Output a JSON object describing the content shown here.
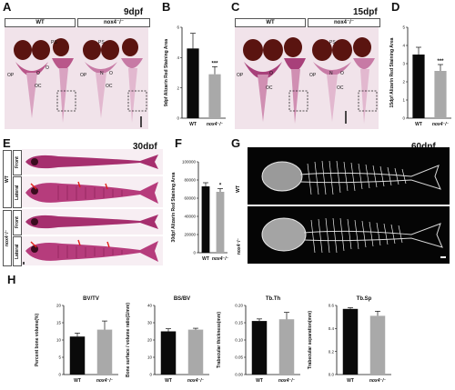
{
  "panels": {
    "A": {
      "letter": "A",
      "stage": "9dpf",
      "genotype_left": "WT",
      "genotype_right": "nox4⁻/⁻",
      "labels": [
        "OP",
        "O",
        "O",
        "OC",
        "PS",
        "N",
        "PS",
        "OP",
        "O",
        "OC"
      ]
    },
    "B": {
      "letter": "B"
    },
    "C": {
      "letter": "C",
      "stage": "15dpf",
      "genotype_left": "WT",
      "genotype_right": "nox4⁻/⁻",
      "labels": [
        "OP",
        "O",
        "OC",
        "PS",
        "N",
        "O",
        "OP",
        "OC"
      ]
    },
    "D": {
      "letter": "D"
    },
    "E": {
      "letter": "E",
      "stage": "30dpf",
      "wt": "WT",
      "mut": "nox4⁻/⁻",
      "view_front": "Front",
      "view_lateral": "Lateral"
    },
    "F": {
      "letter": "F"
    },
    "G": {
      "letter": "G",
      "stage": "60dpf",
      "wt": "WT",
      "mut": "nox4⁻/⁻"
    },
    "H": {
      "letter": "H"
    }
  },
  "colors": {
    "wt_bar": "#0a0a0a",
    "mut_bar": "#a9a9a9",
    "stain": "#8b1a5a",
    "stain_light": "#c77aa5",
    "eye": "#5a1410"
  },
  "chart_data": [
    {
      "id": "B",
      "type": "bar",
      "categories": [
        "WT",
        "nox4⁻/⁻"
      ],
      "values": [
        4.6,
        2.9
      ],
      "errors": [
        1.0,
        0.5
      ],
      "ylabel": "9dpf Alizarin Red Staining Area",
      "ylim": [
        0,
        6
      ],
      "yticks": [
        0,
        2,
        4,
        6
      ],
      "significance": "***"
    },
    {
      "id": "D",
      "type": "bar",
      "categories": [
        "WT",
        "nox4⁻/⁻"
      ],
      "values": [
        3.5,
        2.6
      ],
      "errors": [
        0.4,
        0.35
      ],
      "ylabel": "15dpf Alizarin Red Staining Area",
      "ylim": [
        0,
        5
      ],
      "yticks": [
        0,
        1,
        2,
        3,
        4,
        5
      ],
      "significance": "***"
    },
    {
      "id": "F",
      "type": "bar",
      "categories": [
        "WT",
        "nox4⁻/⁻"
      ],
      "values": [
        73000,
        67000
      ],
      "errors": [
        4000,
        3500
      ],
      "ylabel": "30dpf Alizarin Red Staining Area",
      "ylim": [
        0,
        100000
      ],
      "yticks": [
        0,
        20000,
        40000,
        60000,
        80000,
        100000
      ],
      "significance": "*"
    },
    {
      "id": "H1",
      "type": "bar",
      "title": "BV/TV",
      "categories": [
        "WT",
        "nox4⁻/⁻"
      ],
      "values": [
        11,
        13
      ],
      "errors": [
        1,
        2.5
      ],
      "ylabel": "Percent bone volume(%)",
      "ylim": [
        0,
        20
      ],
      "yticks": [
        0,
        5,
        10,
        15,
        20
      ]
    },
    {
      "id": "H2",
      "type": "bar",
      "title": "BS/BV",
      "categories": [
        "WT",
        "nox4⁻/⁻"
      ],
      "values": [
        25,
        26
      ],
      "errors": [
        1.5,
        0.8
      ],
      "ylabel": "Bone surface / volume ratio(1/mm)",
      "ylim": [
        0,
        40
      ],
      "yticks": [
        0,
        10,
        20,
        30,
        40
      ]
    },
    {
      "id": "H3",
      "type": "bar",
      "title": "Tb.Th",
      "categories": [
        "WT",
        "nox4⁻/⁻"
      ],
      "values": [
        0.155,
        0.16
      ],
      "errors": [
        0.006,
        0.02
      ],
      "ylabel": "Trabecular thickness(mm)",
      "ylim": [
        0,
        0.2
      ],
      "yticks": [
        0.0,
        0.05,
        0.1,
        0.15,
        0.2
      ]
    },
    {
      "id": "H4",
      "type": "bar",
      "title": "Tb.Sp",
      "categories": [
        "WT",
        "nox4⁻/⁻"
      ],
      "values": [
        0.57,
        0.51
      ],
      "errors": [
        0.01,
        0.04
      ],
      "ylabel": "Trabecular separation(mm)",
      "ylim": [
        0,
        0.6
      ],
      "yticks": [
        0.0,
        0.2,
        0.4,
        0.6
      ]
    }
  ]
}
